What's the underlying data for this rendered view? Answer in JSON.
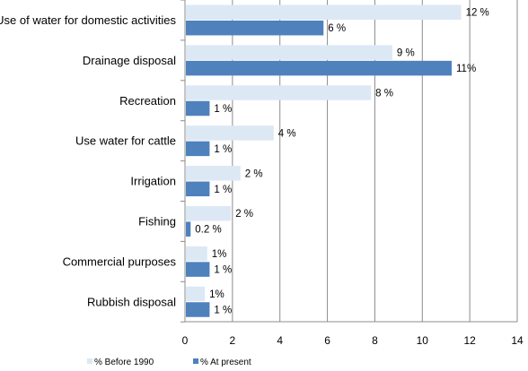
{
  "chart_data": {
    "type": "bar",
    "orientation": "horizontal",
    "categories": [
      "Use of water for domestic activities",
      "Drainage disposal",
      "Recreation",
      "Use water for cattle",
      "Irrigation",
      "Fishing",
      "Commercial purposes",
      "Rubbish disposal"
    ],
    "series": [
      {
        "name": "% Before 1990",
        "color": "#dde8f5",
        "values": [
          11.6,
          8.7,
          7.8,
          3.7,
          2.3,
          1.9,
          0.9,
          0.8
        ],
        "labels": [
          "12 %",
          "9 %",
          "8 %",
          "4 %",
          "2 %",
          "2 %",
          "1%",
          "1%"
        ]
      },
      {
        "name": "% At present",
        "color": "#4f81bd",
        "values": [
          5.8,
          11.2,
          1.0,
          1.0,
          1.0,
          0.2,
          1.0,
          1.0
        ],
        "labels": [
          "6 %",
          "11%",
          "1 %",
          "1 %",
          "1 %",
          "0.2 %",
          "1 %",
          "1 %"
        ]
      }
    ],
    "xlim": [
      0,
      14
    ],
    "xticks": [
      "0",
      "2",
      "4",
      "6",
      "8",
      "10",
      "12",
      "14"
    ],
    "grid": "vertical",
    "legend": "bottom-left",
    "title": "",
    "xlabel": "",
    "ylabel": ""
  }
}
